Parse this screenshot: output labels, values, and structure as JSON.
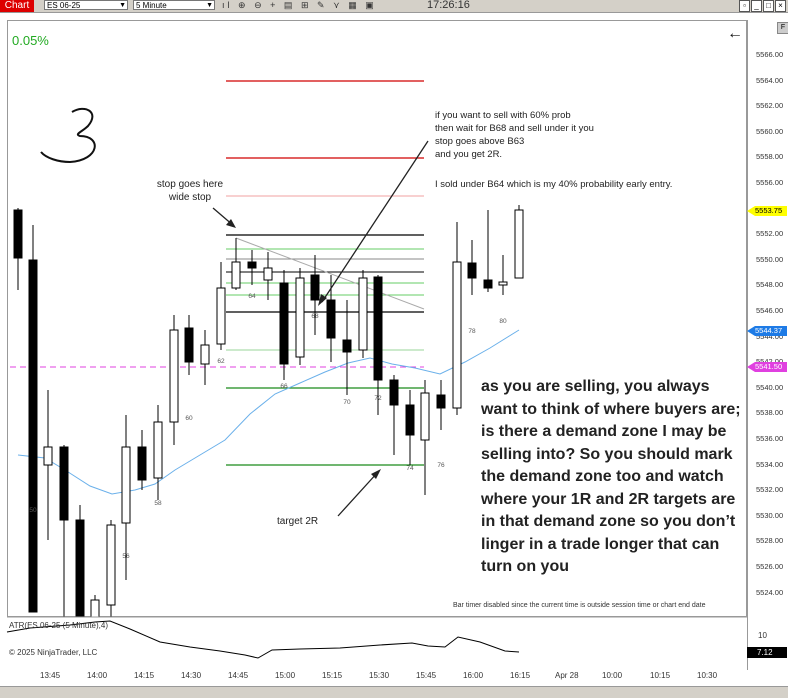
{
  "toolbar": {
    "chart_label": "Chart",
    "instrument": "ES 06-25",
    "interval": "5 Minute",
    "time": "17:26:16",
    "icons": [
      "bar-style-icon",
      "zoom-in-icon",
      "zoom-out-icon",
      "crosshair-icon",
      "properties-icon",
      "strategy-icon",
      "drawing-icon",
      "indicator-icon",
      "data-box-icon",
      "lock-icon"
    ]
  },
  "chart": {
    "change_pct": "0.05%",
    "handwritten_number": "3",
    "price_labels": [
      "5566.00",
      "5564.00",
      "5562.00",
      "5560.00",
      "5558.00",
      "5556.00",
      "5554.00",
      "5552.00",
      "5550.00",
      "5548.00",
      "5546.00",
      "5544.00",
      "5542.00",
      "5540.00",
      "5538.00",
      "5536.00",
      "5534.00",
      "5532.00",
      "5530.00",
      "5528.00",
      "5526.00",
      "5524.00"
    ],
    "last_price": "5553.75",
    "ema_price": "5544.37",
    "dashed_level_price": "5541.50",
    "colors": {
      "last": "#ffff00",
      "ema": "#1e7be6",
      "dashed": "#e040e0",
      "red_line": "#d00000",
      "green_line": "#1a8a1a"
    },
    "bar_numbers": [
      "50",
      "56",
      "58",
      "60",
      "62",
      "64",
      "66",
      "68",
      "70",
      "72",
      "74",
      "76",
      "78",
      "80"
    ],
    "time_labels": [
      "13:45",
      "14:00",
      "14:15",
      "14:30",
      "14:45",
      "15:00",
      "15:15",
      "15:30",
      "15:45",
      "16:00",
      "16:15",
      "Apr 28",
      "10:00",
      "10:15",
      "10:30"
    ],
    "bar_timer_note": "Bar timer disabled since the current time is outside session time or chart end date"
  },
  "annotations": {
    "stop_note": [
      "stop goes here",
      "wide stop"
    ],
    "sell_note": [
      "if you want to sell with 60% prob",
      "then wait for B68 and sell under it you",
      "stop goes above B63",
      "and you get 2R."
    ],
    "early_entry": "I sold under B64 which is my 40% probability early entry.",
    "target": "target 2R",
    "big_note": "as you are selling, you always want to think of where buyers are; is there a demand zone I may be selling into? So you should mark the demand zone too and watch where your 1R and 2R targets are in that demand zone so you don’t linger in a trade longer that can turn on you"
  },
  "indicator": {
    "label": "ATR(ES 06-25 (5 Minute),4)",
    "copyright": "© 2025 NinjaTrader, LLC",
    "scale_label": "10",
    "value": "7.12"
  }
}
